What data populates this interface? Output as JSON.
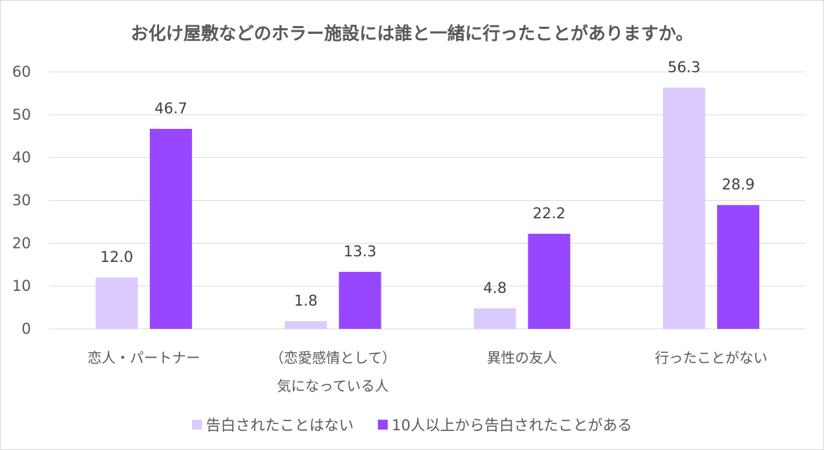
{
  "chart_data": {
    "type": "bar",
    "title": "お化け屋敷などのホラー施設には誰と一緒に行ったことがありますか。",
    "categories": [
      [
        "恋人・パートナー"
      ],
      [
        "（恋愛感情として）",
        "気になっている人"
      ],
      [
        "異性の友人"
      ],
      [
        "行ったことがない"
      ]
    ],
    "series": [
      {
        "name": "告白されたことはない",
        "color": "#dccbff",
        "values": [
          12.0,
          1.8,
          4.8,
          56.3
        ]
      },
      {
        "name": "10人以上から告白されたことがある",
        "color": "#9747ff",
        "values": [
          46.7,
          13.3,
          22.2,
          28.9
        ]
      }
    ],
    "ylim": [
      0,
      60
    ],
    "yticks": [
      "0",
      "10",
      "20",
      "30",
      "40",
      "50",
      "60"
    ],
    "grid": true,
    "legend": "bottom",
    "xlabel": "",
    "ylabel": ""
  }
}
